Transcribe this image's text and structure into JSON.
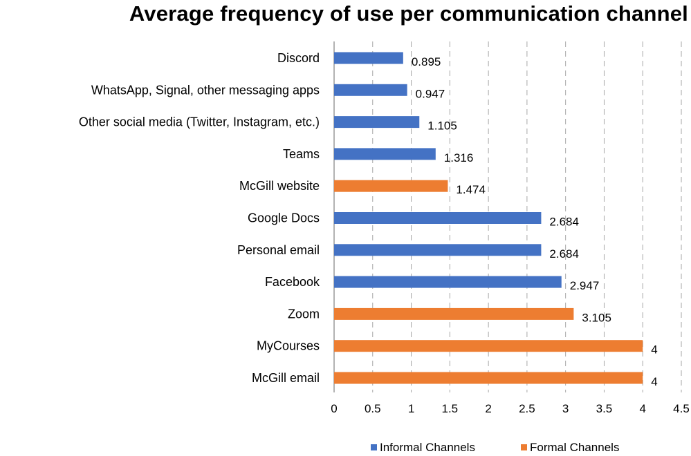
{
  "chart_data": {
    "type": "bar",
    "orientation": "horizontal",
    "title": "Average frequency of use per communication channel",
    "categories": [
      "Discord",
      "WhatsApp, Signal, other messaging apps",
      "Other social media (Twitter, Instagram, etc.)",
      "Teams",
      "McGill website",
      "Google Docs",
      "Personal email",
      "Facebook",
      "Zoom",
      "MyCourses",
      "McGill email"
    ],
    "values": [
      0.895,
      0.947,
      1.105,
      1.316,
      1.474,
      2.684,
      2.684,
      2.947,
      3.105,
      4,
      4
    ],
    "value_labels": [
      "0.895",
      "0.947",
      "1.105",
      "1.316",
      "1.474",
      "2.684",
      "2.684",
      "2.947",
      "3.105",
      "4",
      "4"
    ],
    "series_membership": [
      "Informal Channels",
      "Informal Channels",
      "Informal Channels",
      "Informal Channels",
      "Formal Channels",
      "Informal Channels",
      "Informal Channels",
      "Informal Channels",
      "Formal Channels",
      "Formal Channels",
      "Formal Channels"
    ],
    "series": [
      {
        "name": "Informal Channels",
        "color": "#4472C4"
      },
      {
        "name": "Formal Channels",
        "color": "#ED7D31"
      }
    ],
    "xlim": [
      0,
      4.5
    ],
    "xticks": [
      0,
      0.5,
      1,
      1.5,
      2,
      2.5,
      3,
      3.5,
      4,
      4.5
    ],
    "xtick_labels": [
      "0",
      "0.5",
      "1",
      "1.5",
      "2",
      "2.5",
      "3",
      "3.5",
      "4",
      "4.5"
    ],
    "grid": "vertical dashed",
    "legend_position": "bottom",
    "xlabel": "",
    "ylabel": ""
  },
  "legend": {
    "informal_label": "Informal Channels",
    "formal_label": "Formal Channels"
  }
}
